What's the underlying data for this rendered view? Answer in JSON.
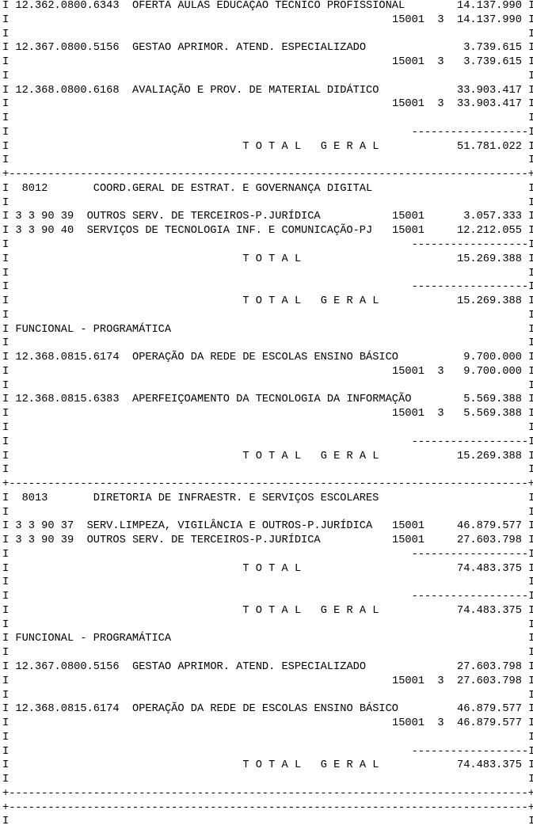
{
  "border": {
    "side": "I",
    "corner": "+",
    "dash": "-"
  },
  "rows": [
    {
      "type": "item",
      "code": "12.362.0800.6343",
      "desc": "OFERTA AULAS EDUCAÇÃO TÉCNICO PROFISSIONAL",
      "amount": "14.137.990"
    },
    {
      "type": "source",
      "fonte": "15001",
      "mod": "3",
      "amount": "14.137.990"
    },
    {
      "type": "blank"
    },
    {
      "type": "item",
      "code": "12.367.0800.5156",
      "desc": "GESTAO APRIMOR. ATEND. ESPECIALIZADO",
      "amount": "3.739.615"
    },
    {
      "type": "source",
      "fonte": "15001",
      "mod": "3",
      "amount": "3.739.615"
    },
    {
      "type": "blank"
    },
    {
      "type": "item",
      "code": "12.368.0800.6168",
      "desc": "AVALIAÇÃO E PROV. DE MATERIAL DIDÁTICO",
      "amount": "33.903.417"
    },
    {
      "type": "source",
      "fonte": "15001",
      "mod": "3",
      "amount": "33.903.417"
    },
    {
      "type": "blank"
    },
    {
      "type": "rule"
    },
    {
      "type": "total",
      "label": "T O T A L   G E R A L",
      "amount": "51.781.022"
    },
    {
      "type": "blank"
    },
    {
      "type": "separator"
    },
    {
      "type": "unit",
      "code": "8012",
      "desc": "COORD.GERAL DE ESTRAT. E GOVERNANÇA DIGITAL"
    },
    {
      "type": "blank"
    },
    {
      "type": "expense",
      "code": "3 3 90 39",
      "desc": "OUTROS SERV. DE TERCEIROS-P.JURÍDICA",
      "fonte": "15001",
      "amount": "3.057.333"
    },
    {
      "type": "expense",
      "code": "3 3 90 40",
      "desc": "SERVIÇOS DE TECNOLOGIA INF. E COMUNICAÇÃO-PJ",
      "fonte": "15001",
      "amount": "12.212.055"
    },
    {
      "type": "rule"
    },
    {
      "type": "total",
      "label": "T O T A L",
      "amount": "15.269.388"
    },
    {
      "type": "blank"
    },
    {
      "type": "rule"
    },
    {
      "type": "total",
      "label": "T O T A L   G E R A L",
      "amount": "15.269.388"
    },
    {
      "type": "blank"
    },
    {
      "type": "heading",
      "text": "FUNCIONAL - PROGRAMÁTICA"
    },
    {
      "type": "blank"
    },
    {
      "type": "item",
      "code": "12.368.0815.6174",
      "desc": "OPERAÇÃO DA REDE DE ESCOLAS ENSINO BÁSICO",
      "amount": "9.700.000"
    },
    {
      "type": "source",
      "fonte": "15001",
      "mod": "3",
      "amount": "9.700.000"
    },
    {
      "type": "blank"
    },
    {
      "type": "item",
      "code": "12.368.0815.6383",
      "desc": "APERFEIÇOAMENTO DA TECNOLOGIA DA INFORMAÇÃO",
      "amount": "5.569.388"
    },
    {
      "type": "source",
      "fonte": "15001",
      "mod": "3",
      "amount": "5.569.388"
    },
    {
      "type": "blank"
    },
    {
      "type": "rule"
    },
    {
      "type": "total",
      "label": "T O T A L   G E R A L",
      "amount": "15.269.388"
    },
    {
      "type": "blank"
    },
    {
      "type": "separator"
    },
    {
      "type": "unit",
      "code": "8013",
      "desc": "DIRETORIA DE INFRAESTR. E SERVIÇOS ESCOLARES"
    },
    {
      "type": "blank"
    },
    {
      "type": "expense",
      "code": "3 3 90 37",
      "desc": "SERV.LIMPEZA, VIGILÂNCIA E OUTROS-P.JURÍDICA",
      "fonte": "15001",
      "amount": "46.879.577"
    },
    {
      "type": "expense",
      "code": "3 3 90 39",
      "desc": "OUTROS SERV. DE TERCEIROS-P.JURÍDICA",
      "fonte": "15001",
      "amount": "27.603.798"
    },
    {
      "type": "rule"
    },
    {
      "type": "total",
      "label": "T O T A L",
      "amount": "74.483.375"
    },
    {
      "type": "blank"
    },
    {
      "type": "rule"
    },
    {
      "type": "total",
      "label": "T O T A L   G E R A L",
      "amount": "74.483.375"
    },
    {
      "type": "blank"
    },
    {
      "type": "heading",
      "text": "FUNCIONAL - PROGRAMÁTICA"
    },
    {
      "type": "blank"
    },
    {
      "type": "item",
      "code": "12.367.0800.5156",
      "desc": "GESTAO APRIMOR. ATEND. ESPECIALIZADO",
      "amount": "27.603.798"
    },
    {
      "type": "source",
      "fonte": "15001",
      "mod": "3",
      "amount": "27.603.798"
    },
    {
      "type": "blank"
    },
    {
      "type": "item",
      "code": "12.368.0815.6174",
      "desc": "OPERAÇÃO DA REDE DE ESCOLAS ENSINO BÁSICO",
      "amount": "46.879.577"
    },
    {
      "type": "source",
      "fonte": "15001",
      "mod": "3",
      "amount": "46.879.577"
    },
    {
      "type": "blank"
    },
    {
      "type": "rule"
    },
    {
      "type": "total",
      "label": "T O T A L   G E R A L",
      "amount": "74.483.375"
    },
    {
      "type": "blank"
    },
    {
      "type": "separator"
    },
    {
      "type": "separator"
    },
    {
      "type": "blank"
    }
  ]
}
